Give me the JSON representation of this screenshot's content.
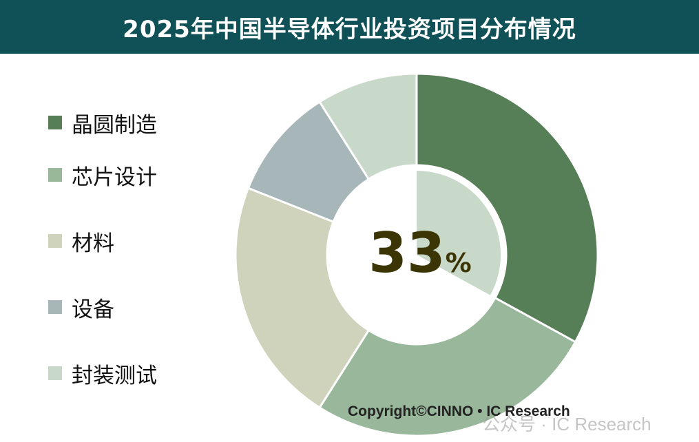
{
  "chart_data": {
    "type": "pie",
    "title": "2025年中国半导体行业投资项目分布情况",
    "categories": [
      "晶圆制造",
      "芯片设计",
      "材料",
      "设备",
      "封装测试"
    ],
    "values": [
      33,
      26,
      22,
      10,
      9
    ],
    "colors": [
      "#567e57",
      "#99b89b",
      "#d0d3bc",
      "#a7b6b9",
      "#c8d9c9"
    ],
    "center_label": {
      "value": "33",
      "unit": "%"
    },
    "inner_highlight_color": "#c8d9c9",
    "legend_position": "left"
  },
  "copyright": "Copyright©CINNO • IC Research",
  "watermark": "公众号 · IC Research"
}
